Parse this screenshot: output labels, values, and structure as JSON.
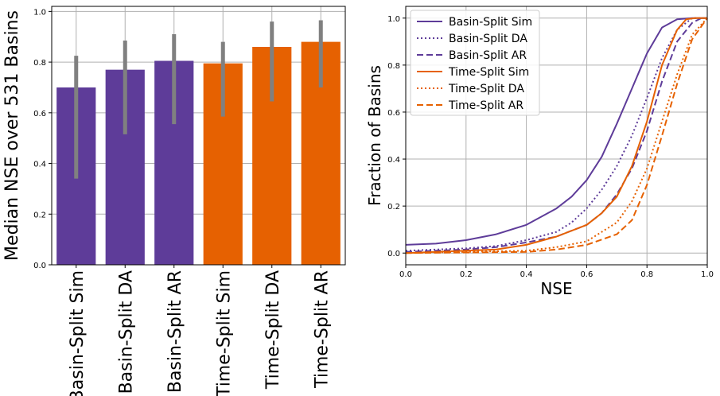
{
  "chart_data": [
    {
      "type": "bar",
      "title": "",
      "xlabel": "",
      "ylabel": "Median NSE over 531 Basins",
      "ylim": [
        0,
        1.02
      ],
      "yticks": [
        0.0,
        0.2,
        0.4,
        0.6,
        0.8,
        1.0
      ],
      "ytick_labels": [
        "0.0",
        "0.2",
        "0.4",
        "0.6",
        "0.8",
        "1.0"
      ],
      "grid": true,
      "categories": [
        "Basin-Split Sim",
        "Basin-Split DA",
        "Basin-Split AR",
        "Time-Split Sim",
        "Time-Split DA",
        "Time-Split AR"
      ],
      "values": [
        0.7,
        0.77,
        0.805,
        0.795,
        0.86,
        0.88
      ],
      "error_low": [
        0.34,
        0.515,
        0.555,
        0.585,
        0.645,
        0.7
      ],
      "error_high": [
        0.825,
        0.885,
        0.91,
        0.88,
        0.96,
        0.965
      ],
      "colors": [
        "#5e3c99",
        "#5e3c99",
        "#5e3c99",
        "#e66101",
        "#e66101",
        "#e66101"
      ],
      "error_color": "#808080"
    },
    {
      "type": "line",
      "title": "",
      "xlabel": "NSE",
      "ylabel": "Fraction of Basins",
      "xlim": [
        0,
        1
      ],
      "ylim": [
        -0.05,
        1.05
      ],
      "xticks": [
        0.0,
        0.2,
        0.4,
        0.6,
        0.8,
        1.0
      ],
      "xtick_labels": [
        "0.0",
        "0.2",
        "0.4",
        "0.6",
        "0.8",
        "1.0"
      ],
      "yticks": [
        0.0,
        0.2,
        0.4,
        0.6,
        0.8,
        1.0
      ],
      "ytick_labels": [
        "0.0",
        "0.2",
        "0.4",
        "0.6",
        "0.8",
        "1.0"
      ],
      "grid": true,
      "legend_position": "top-left",
      "series": [
        {
          "name": "Basin-Split Sim",
          "color": "#5e3c99",
          "style": "solid",
          "x": [
            0,
            0.1,
            0.2,
            0.3,
            0.4,
            0.5,
            0.55,
            0.6,
            0.65,
            0.7,
            0.75,
            0.78,
            0.8,
            0.85,
            0.9,
            0.95
          ],
          "y": [
            0.035,
            0.04,
            0.055,
            0.08,
            0.12,
            0.19,
            0.24,
            0.31,
            0.41,
            0.55,
            0.7,
            0.79,
            0.85,
            0.96,
            0.995,
            1.0
          ]
        },
        {
          "name": "Basin-Split DA",
          "color": "#5e3c99",
          "style": "dotted",
          "x": [
            0,
            0.2,
            0.3,
            0.4,
            0.5,
            0.55,
            0.6,
            0.65,
            0.7,
            0.75,
            0.8,
            0.85,
            0.9,
            0.95
          ],
          "y": [
            0.01,
            0.02,
            0.03,
            0.055,
            0.09,
            0.13,
            0.19,
            0.27,
            0.37,
            0.5,
            0.66,
            0.83,
            0.95,
            1.0
          ]
        },
        {
          "name": "Basin-Split AR",
          "color": "#5e3c99",
          "style": "dashed",
          "x": [
            0,
            0.2,
            0.3,
            0.4,
            0.5,
            0.6,
            0.65,
            0.7,
            0.75,
            0.8,
            0.85,
            0.9,
            0.95,
            0.98
          ],
          "y": [
            0.005,
            0.015,
            0.025,
            0.045,
            0.07,
            0.12,
            0.17,
            0.25,
            0.36,
            0.52,
            0.73,
            0.9,
            0.98,
            1.0
          ]
        },
        {
          "name": "Time-Split Sim",
          "color": "#e66101",
          "style": "solid",
          "x": [
            0,
            0.3,
            0.4,
            0.5,
            0.6,
            0.65,
            0.7,
            0.75,
            0.8,
            0.85,
            0.9,
            0.93,
            0.96
          ],
          "y": [
            0.0,
            0.015,
            0.035,
            0.07,
            0.12,
            0.17,
            0.24,
            0.37,
            0.56,
            0.8,
            0.95,
            0.995,
            1.0
          ]
        },
        {
          "name": "Time-Split DA",
          "color": "#e66101",
          "style": "dotted",
          "x": [
            0,
            0.4,
            0.5,
            0.6,
            0.7,
            0.75,
            0.8,
            0.85,
            0.9,
            0.95,
            1.0
          ],
          "y": [
            0.0,
            0.01,
            0.025,
            0.05,
            0.13,
            0.22,
            0.36,
            0.56,
            0.76,
            0.93,
            1.0
          ]
        },
        {
          "name": "Time-Split AR",
          "color": "#e66101",
          "style": "dashed",
          "x": [
            0,
            0.4,
            0.5,
            0.6,
            0.7,
            0.75,
            0.8,
            0.85,
            0.9,
            0.95,
            1.0
          ],
          "y": [
            0.0,
            0.005,
            0.015,
            0.035,
            0.08,
            0.14,
            0.29,
            0.5,
            0.72,
            0.91,
            1.0
          ]
        }
      ]
    }
  ]
}
